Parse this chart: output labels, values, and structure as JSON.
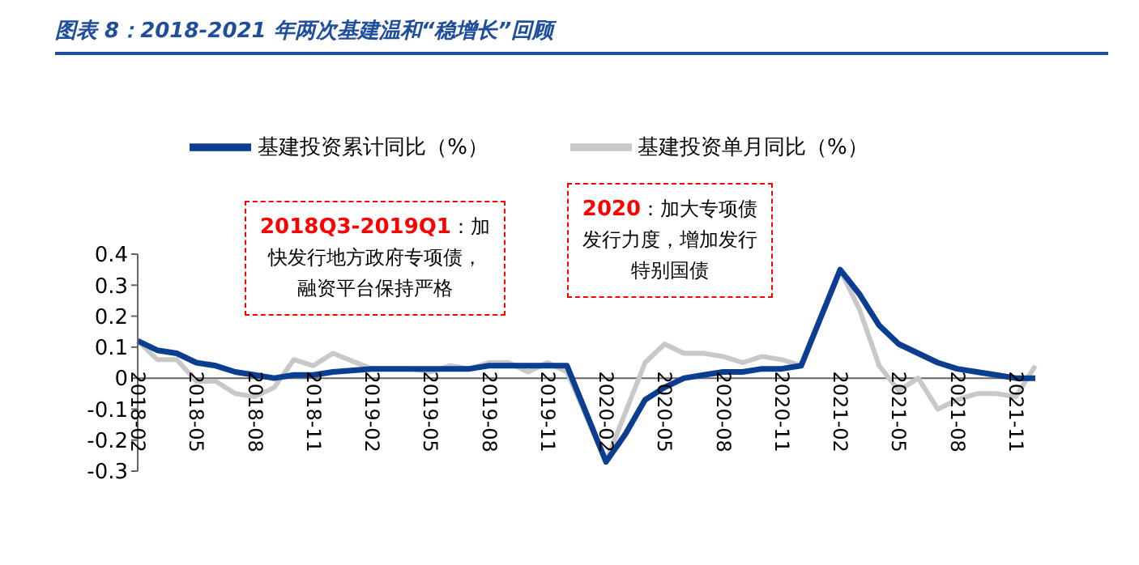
{
  "chart_data": {
    "type": "line",
    "title": "图表 8：2018-2021 年两次基建温和“稳增长”回顾",
    "categories": [
      "2018-02",
      null,
      null,
      "2018-05",
      null,
      null,
      "2018-08",
      null,
      null,
      "2018-11",
      null,
      null,
      "2019-02",
      null,
      null,
      "2019-05",
      null,
      null,
      "2019-08",
      null,
      null,
      "2019-11",
      null,
      null,
      "2020-02",
      null,
      null,
      "2020-05",
      null,
      null,
      "2020-08",
      null,
      null,
      "2020-11",
      null,
      null,
      "2021-02",
      null,
      null,
      "2021-05",
      null,
      null,
      "2021-08",
      null,
      null,
      "2021-11",
      null
    ],
    "series": [
      {
        "name": "基建投资累计同比（%）",
        "color": "#0b3d91",
        "values": [
          0.12,
          0.09,
          0.08,
          0.05,
          0.04,
          0.02,
          0.01,
          0.0,
          0.01,
          0.01,
          0.02,
          null,
          0.03,
          0.03,
          0.03,
          0.03,
          0.03,
          0.03,
          0.04,
          0.04,
          0.04,
          0.04,
          0.04,
          null,
          -0.27,
          -0.18,
          -0.07,
          -0.03,
          0.0,
          0.01,
          0.02,
          0.02,
          0.03,
          0.03,
          0.04,
          null,
          0.35,
          0.27,
          0.17,
          0.11,
          0.08,
          0.05,
          0.03,
          0.02,
          0.01,
          0.0,
          0.0
        ]
      },
      {
        "name": "基建投资单月同比（%）",
        "color": "#c8c8c8",
        "values": [
          0.12,
          0.06,
          0.06,
          -0.01,
          -0.01,
          -0.05,
          -0.06,
          -0.03,
          0.06,
          0.04,
          0.08,
          null,
          0.03,
          0.03,
          0.03,
          0.02,
          0.04,
          0.03,
          0.05,
          0.05,
          0.02,
          0.05,
          0.02,
          null,
          -0.27,
          -0.11,
          0.05,
          0.11,
          0.08,
          0.08,
          0.07,
          0.05,
          0.07,
          0.06,
          0.04,
          null,
          0.35,
          0.22,
          0.04,
          -0.04,
          0.0,
          -0.1,
          -0.07,
          -0.05,
          -0.05,
          -0.06,
          0.04
        ]
      }
    ],
    "ylim": [
      -0.3,
      0.4
    ],
    "yticks": [
      -0.3,
      -0.2,
      -0.1,
      0,
      0.1,
      0.2,
      0.3,
      0.4
    ],
    "grid": false,
    "legend": "top",
    "marker": "none",
    "line_style": "solid",
    "annotations": [
      "2018Q3-2019Q1：加快发行地方政府专项债，融资平台保持严格",
      "2020：加大专项债发行力度，增加发行特别国债"
    ]
  }
}
